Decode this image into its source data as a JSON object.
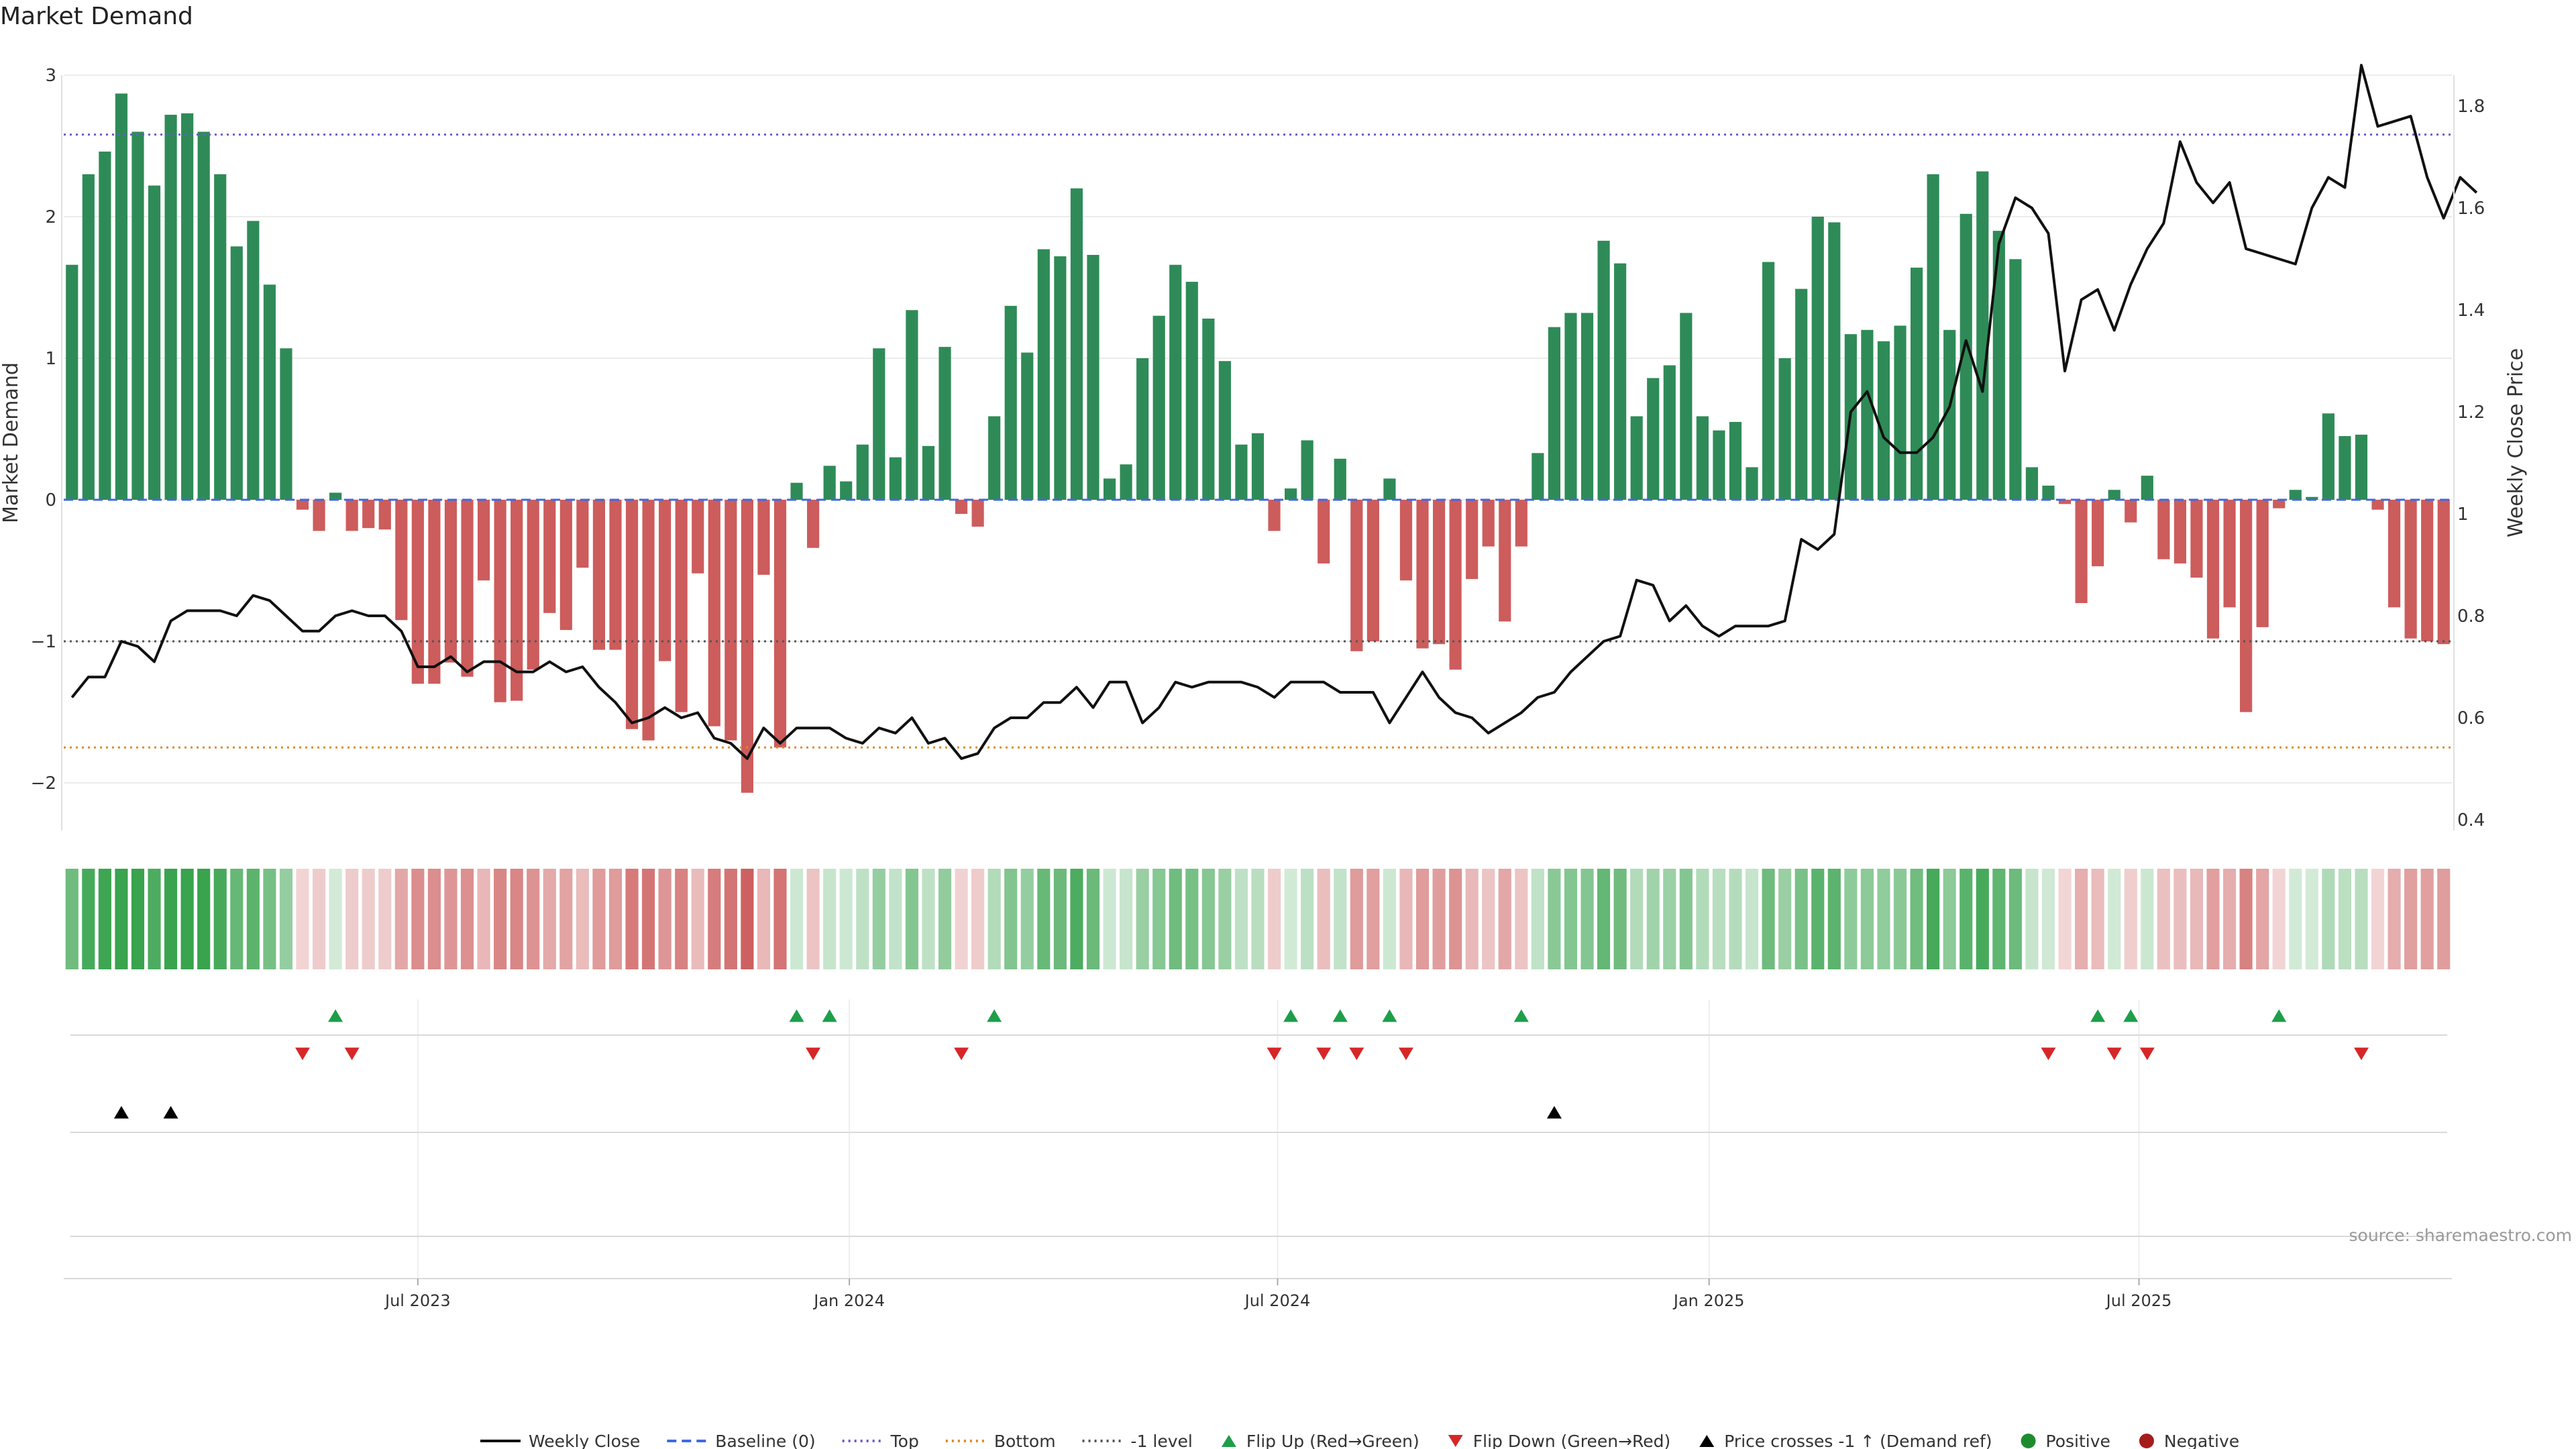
{
  "title": "Market Demand",
  "source": "source: sharemaestro.com",
  "colors": {
    "positive": "#2e8b57",
    "negative": "#cd5c5c",
    "price": "#111111",
    "top": "#6a5acd",
    "bottom": "#e08a1e",
    "minus1": "#555555",
    "baseline": "#4169e1",
    "flip_up": "#1e9e4a",
    "flip_down": "#d62728",
    "cross": "#000000",
    "pos_dot": "#1e8c2e",
    "neg_dot": "#a51c1c",
    "strip_green": "#2e9e44",
    "strip_red": "#c23b3b"
  },
  "chart_data": {
    "type": "bar+line",
    "title": "Market Demand",
    "ylabel": "Market Demand",
    "y2label": "Weekly Close Price",
    "ylim": [
      -2.35,
      3.0
    ],
    "y2lim": [
      0.38,
      1.9
    ],
    "yticks": [
      "3",
      "2",
      "1",
      "0",
      "−1",
      "−2"
    ],
    "yticks_values": [
      3,
      2,
      1,
      0,
      -1,
      -2
    ],
    "y2ticks": [
      "1.8",
      "1.6",
      "1.4",
      "1.2",
      "1",
      "0.8",
      "0.6",
      "0.4"
    ],
    "y2ticks_values": [
      1.8,
      1.6,
      1.4,
      1.2,
      1.0,
      0.8,
      0.6,
      0.4
    ],
    "x_tick_labels": [
      "Jul 2023",
      "Jan 2024",
      "Jul 2024",
      "Jan 2025",
      "Jul 2025"
    ],
    "x_tick_weeks": [
      21.5,
      47.7,
      73.7,
      99.9,
      126
    ],
    "reference_lines": {
      "top": 2.58,
      "bottom": -1.75,
      "minus1": -1.0,
      "baseline": 0
    },
    "demand": [
      1.66,
      2.3,
      2.46,
      2.87,
      2.6,
      2.22,
      2.72,
      2.73,
      2.6,
      2.3,
      1.79,
      1.97,
      1.52,
      1.07,
      -0.07,
      -0.22,
      0.05,
      -0.22,
      -0.2,
      -0.21,
      -0.85,
      -1.3,
      -1.3,
      -1.15,
      -1.25,
      -0.57,
      -1.43,
      -1.42,
      -1.2,
      -0.8,
      -0.92,
      -0.48,
      -1.06,
      -1.06,
      -1.62,
      -1.7,
      -1.14,
      -1.5,
      -0.52,
      -1.6,
      -1.7,
      -2.07,
      -0.53,
      -1.75,
      0.12,
      -0.34,
      0.24,
      0.13,
      0.39,
      1.07,
      0.3,
      1.34,
      0.38,
      1.08,
      -0.1,
      -0.19,
      0.59,
      1.37,
      1.04,
      1.77,
      1.72,
      2.2,
      1.73,
      0.15,
      0.25,
      1.0,
      1.3,
      1.66,
      1.54,
      1.28,
      0.98,
      0.39,
      0.47,
      -0.22,
      0.08,
      0.42,
      -0.45,
      0.29,
      -1.07,
      -1.0,
      0.15,
      -0.57,
      -1.05,
      -1.02,
      -1.2,
      -0.56,
      -0.33,
      -0.86,
      -0.33,
      0.33,
      1.22,
      1.32,
      1.32,
      1.83,
      1.67,
      0.59,
      0.86,
      0.95,
      1.32,
      0.59,
      0.49,
      0.55,
      0.23,
      1.68,
      1.0,
      1.49,
      2.0,
      1.96,
      1.17,
      1.2,
      1.12,
      1.23,
      1.64,
      2.3,
      1.2,
      2.02,
      2.32,
      1.9,
      1.7,
      0.23,
      0.1,
      -0.03,
      -0.73,
      -0.47,
      0.07,
      -0.16,
      0.17,
      -0.42,
      -0.45,
      -0.55,
      -0.98,
      -0.76,
      -1.5,
      -0.9,
      -0.06,
      0.07,
      0.02,
      0.61,
      0.45,
      0.46,
      -0.07,
      -0.76,
      -0.98,
      -1.0,
      -1.02
    ],
    "price": [
      0.64,
      0.68,
      0.68,
      0.75,
      0.74,
      0.71,
      0.79,
      0.81,
      0.81,
      0.81,
      0.8,
      0.84,
      0.83,
      0.8,
      0.77,
      0.77,
      0.8,
      0.81,
      0.8,
      0.8,
      0.77,
      0.7,
      0.7,
      0.72,
      0.69,
      0.71,
      0.71,
      0.69,
      0.69,
      0.71,
      0.69,
      0.7,
      0.66,
      0.63,
      0.59,
      0.6,
      0.62,
      0.6,
      0.61,
      0.56,
      0.55,
      0.52,
      0.58,
      0.55,
      0.58,
      0.58,
      0.58,
      0.56,
      0.55,
      0.58,
      0.57,
      0.6,
      0.55,
      0.56,
      0.52,
      0.53,
      0.58,
      0.6,
      0.6,
      0.63,
      0.63,
      0.66,
      0.62,
      0.67,
      0.67,
      0.59,
      0.62,
      0.67,
      0.66,
      0.67,
      0.67,
      0.67,
      0.66,
      0.64,
      0.67,
      0.67,
      0.67,
      0.65,
      0.65,
      0.65,
      0.59,
      0.64,
      0.69,
      0.64,
      0.61,
      0.6,
      0.57,
      0.59,
      0.61,
      0.64,
      0.65,
      0.69,
      0.72,
      0.75,
      0.76,
      0.87,
      0.86,
      0.79,
      0.82,
      0.78,
      0.76,
      0.78,
      0.78,
      0.78,
      0.79,
      0.95,
      0.93,
      0.96,
      1.2,
      1.24,
      1.15,
      1.12,
      1.12,
      1.15,
      1.21,
      1.34,
      1.24,
      1.53,
      1.62,
      1.6,
      1.55,
      1.28,
      1.42,
      1.44,
      1.36,
      1.45,
      1.52,
      1.57,
      1.73,
      1.65,
      1.61,
      1.65,
      1.52,
      1.51,
      1.5,
      1.49,
      1.6,
      1.66,
      1.64,
      1.88,
      1.76,
      1.77,
      1.78,
      1.66,
      1.58,
      1.66,
      1.63
    ],
    "flip_up_weeks": [
      16,
      44,
      46,
      56,
      74,
      77,
      80,
      88,
      123,
      125,
      134
    ],
    "flip_down_weeks": [
      14,
      17,
      45,
      54,
      73,
      76,
      78,
      81,
      120,
      124,
      126,
      139
    ],
    "cross_up_weeks": [
      3,
      6,
      90
    ]
  },
  "legend": [
    {
      "key": "weekly_close",
      "label": "Weekly Close",
      "symbol": "solid-line-icon",
      "color": "#111111"
    },
    {
      "key": "baseline",
      "label": "Baseline (0)",
      "symbol": "dashed-line-icon",
      "color": "#4169e1"
    },
    {
      "key": "top",
      "label": "Top",
      "symbol": "dotted-line-icon",
      "color": "#6a5acd"
    },
    {
      "key": "bottom",
      "label": "Bottom",
      "symbol": "dotted-line-icon",
      "color": "#e08a1e"
    },
    {
      "key": "minus1",
      "label": "-1 level",
      "symbol": "dotted-line-icon",
      "color": "#555555"
    },
    {
      "key": "flip_up",
      "label": "Flip Up (Red→Green)",
      "symbol": "triangle-up-icon",
      "color": "#1e9e4a"
    },
    {
      "key": "flip_down",
      "label": "Flip Down (Green→Red)",
      "symbol": "triangle-down-icon",
      "color": "#d62728"
    },
    {
      "key": "cross",
      "label": "Price crosses -1 ↑ (Demand ref)",
      "symbol": "triangle-up-icon",
      "color": "#000000"
    },
    {
      "key": "positive",
      "label": "Positive",
      "symbol": "circle-icon",
      "color": "#1e8c2e"
    },
    {
      "key": "negative",
      "label": "Negative",
      "symbol": "circle-icon",
      "color": "#a51c1c"
    }
  ]
}
